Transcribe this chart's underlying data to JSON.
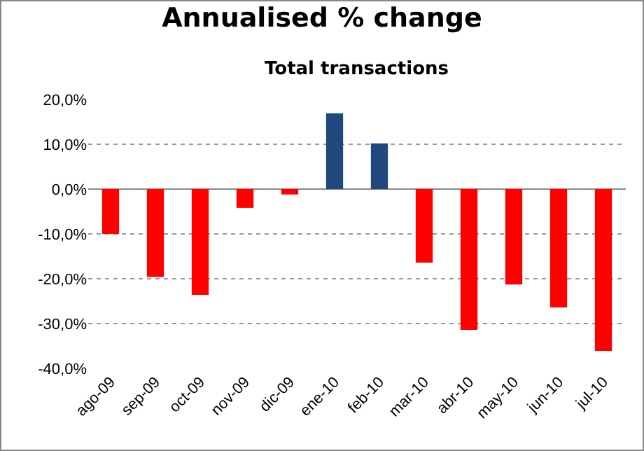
{
  "chart_data": {
    "type": "bar",
    "title": "Annualised % change",
    "subtitle": "Total transactions",
    "categories": [
      "ago-09",
      "sep-09",
      "oct-09",
      "nov-09",
      "dic-09",
      "ene-10",
      "feb-10",
      "mar-10",
      "abr-10",
      "may-10",
      "jun-10",
      "jul-10"
    ],
    "values": [
      -10,
      -19.6,
      -23.6,
      -4.2,
      -1.2,
      16.9,
      10.2,
      -16.4,
      -31.4,
      -21.3,
      -26.4,
      -36.1
    ],
    "colors": [
      "#ff0000",
      "#ff0000",
      "#ff0000",
      "#ff0000",
      "#ff0000",
      "#1f497d",
      "#1f497d",
      "#ff0000",
      "#ff0000",
      "#ff0000",
      "#ff0000",
      "#ff0000"
    ],
    "ylim": [
      -40,
      20
    ],
    "yticks": [
      {
        "value": -40,
        "label": "-40,0%"
      },
      {
        "value": -30,
        "label": "-30,0%"
      },
      {
        "value": -20,
        "label": "-20,0%"
      },
      {
        "value": -10,
        "label": "-10,0%"
      },
      {
        "value": 0,
        "label": "0,0%"
      },
      {
        "value": 10,
        "label": "10,0%"
      },
      {
        "value": 20,
        "label": "20,0%"
      }
    ],
    "grid": "y",
    "legend": false
  }
}
